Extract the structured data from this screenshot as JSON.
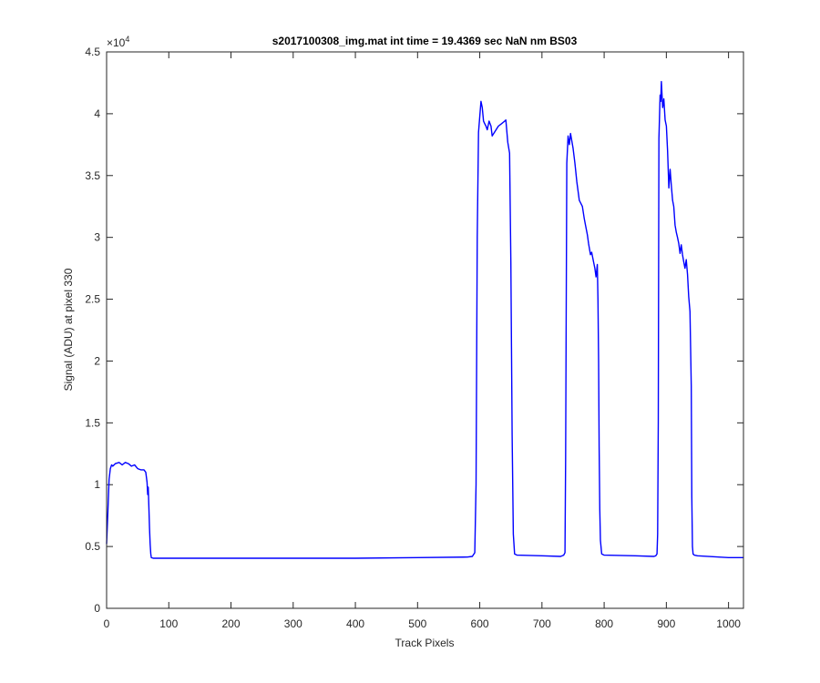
{
  "chart_data": {
    "type": "line",
    "title": "s2017100308_img.mat int time = 19.4369 sec  NaN nm BS03",
    "xlabel": "Track Pixels",
    "ylabel": "Signal (ADU) at pixel 330",
    "y_exponent_label": "×10",
    "y_exponent_power": "4",
    "xlim": [
      0,
      1024
    ],
    "ylim": [
      0,
      45000
    ],
    "x_ticks": [
      0,
      100,
      200,
      300,
      400,
      500,
      600,
      700,
      800,
      900,
      1000
    ],
    "x_tick_labels": [
      "0",
      "100",
      "200",
      "300",
      "400",
      "500",
      "600",
      "700",
      "800",
      "900",
      "1000"
    ],
    "y_ticks": [
      0,
      5000,
      10000,
      15000,
      20000,
      25000,
      30000,
      35000,
      40000,
      45000
    ],
    "y_tick_labels": [
      "0",
      "0.5",
      "1",
      "1.5",
      "2",
      "2.5",
      "3",
      "3.5",
      "4",
      "4.5"
    ],
    "grid": false,
    "series": [
      {
        "color": "#0000ff",
        "x": [
          0,
          2,
          4,
          6,
          8,
          10,
          14,
          20,
          25,
          30,
          35,
          40,
          45,
          50,
          55,
          60,
          63,
          65,
          66,
          67,
          68,
          69,
          70,
          71,
          72,
          75,
          100,
          200,
          300,
          400,
          500,
          580,
          588,
          592,
          594,
          596,
          598,
          600,
          602,
          604,
          606,
          608,
          610,
          612,
          615,
          618,
          620,
          625,
          630,
          635,
          640,
          642,
          645,
          648,
          650,
          652,
          654,
          656,
          660,
          700,
          730,
          735,
          737,
          738,
          740,
          742,
          744,
          746,
          748,
          750,
          753,
          756,
          760,
          765,
          768,
          770,
          773,
          775,
          778,
          780,
          783,
          785,
          787,
          789,
          790,
          791,
          792,
          793,
          794,
          796,
          800,
          850,
          880,
          883,
          885,
          886,
          887,
          888,
          890,
          891,
          892,
          894,
          896,
          898,
          900,
          902,
          904,
          906,
          908,
          910,
          912,
          914,
          916,
          918,
          920,
          922,
          924,
          926,
          928,
          930,
          932,
          934,
          936,
          938,
          940,
          941,
          942,
          943,
          945,
          950,
          1000,
          1024
        ],
        "y": [
          5200,
          7800,
          10400,
          11300,
          11600,
          11500,
          11700,
          11800,
          11600,
          11800,
          11700,
          11500,
          11600,
          11300,
          11200,
          11200,
          11000,
          10200,
          9200,
          9800,
          8200,
          6500,
          5200,
          4400,
          4100,
          4050,
          4050,
          4050,
          4050,
          4050,
          4100,
          4150,
          4200,
          4500,
          10000,
          30000,
          38500,
          39800,
          41000,
          40500,
          39400,
          39200,
          39000,
          38700,
          39400,
          39000,
          38200,
          38600,
          39000,
          39200,
          39400,
          39500,
          37700,
          36800,
          28000,
          14000,
          6000,
          4400,
          4300,
          4250,
          4200,
          4300,
          4500,
          12000,
          36000,
          38200,
          37500,
          38400,
          37800,
          37200,
          36000,
          34500,
          33000,
          32500,
          31500,
          31000,
          30200,
          29500,
          28600,
          28800,
          28000,
          27500,
          26800,
          27800,
          25000,
          20000,
          13000,
          8000,
          5500,
          4400,
          4300,
          4250,
          4200,
          4250,
          4400,
          6000,
          15000,
          38000,
          41500,
          41000,
          42600,
          40500,
          41200,
          39500,
          39000,
          37000,
          34000,
          35500,
          34200,
          33000,
          32500,
          31000,
          30400,
          30000,
          29500,
          28700,
          29400,
          28600,
          28000,
          27500,
          28200,
          27000,
          25200,
          24000,
          18000,
          9000,
          5000,
          4400,
          4300,
          4250,
          4100,
          4100
        ]
      }
    ]
  }
}
